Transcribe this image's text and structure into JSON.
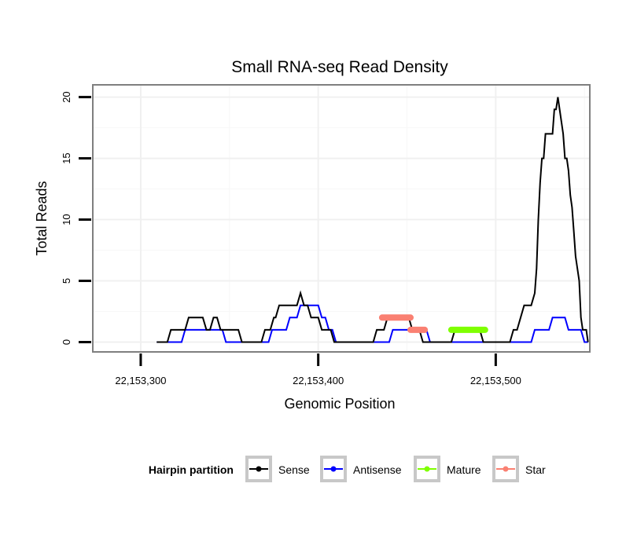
{
  "chart_data": {
    "type": "line",
    "title": "Small RNA-seq Read Density",
    "xlabel": "Genomic Position",
    "ylabel": "Total Reads",
    "xlim": [
      22153273,
      22153553
    ],
    "ylim": [
      -0.8,
      21
    ],
    "x_ticks": [
      {
        "value": 22153300,
        "label": "22,153,300"
      },
      {
        "value": 22153400,
        "label": "22,153,400"
      },
      {
        "value": 22153500,
        "label": "22,153,500"
      }
    ],
    "y_ticks": [
      {
        "value": 0,
        "label": "0"
      },
      {
        "value": 5,
        "label": "5"
      },
      {
        "value": 10,
        "label": "10"
      },
      {
        "value": 15,
        "label": "15"
      },
      {
        "value": 20,
        "label": "20"
      }
    ],
    "grid": true,
    "legend": {
      "title": "Hairpin partition",
      "position": "bottom",
      "entries": [
        "Sense",
        "Antisense",
        "Mature",
        "Star"
      ]
    },
    "series": [
      {
        "name": "Sense",
        "color": "#000000",
        "points": [
          [
            22153309,
            0
          ],
          [
            22153315,
            0
          ],
          [
            22153317,
            1
          ],
          [
            22153325,
            1
          ],
          [
            22153327,
            2
          ],
          [
            22153335,
            2
          ],
          [
            22153337,
            1
          ],
          [
            22153339,
            1
          ],
          [
            22153341,
            2
          ],
          [
            22153343,
            2
          ],
          [
            22153345,
            1
          ],
          [
            22153355,
            1
          ],
          [
            22153357,
            0
          ],
          [
            22153368,
            0
          ],
          [
            22153370,
            1
          ],
          [
            22153373,
            1
          ],
          [
            22153375,
            2
          ],
          [
            22153376,
            2
          ],
          [
            22153378,
            3
          ],
          [
            22153388,
            3
          ],
          [
            22153390,
            4
          ],
          [
            22153392,
            3
          ],
          [
            22153394,
            3
          ],
          [
            22153396,
            2
          ],
          [
            22153400,
            2
          ],
          [
            22153402,
            1
          ],
          [
            22153407,
            1
          ],
          [
            22153409,
            0
          ],
          [
            22153431,
            0
          ],
          [
            22153433,
            1
          ],
          [
            22153437,
            1
          ],
          [
            22153439,
            2
          ],
          [
            22153451,
            2
          ],
          [
            22153453,
            1
          ],
          [
            22153457,
            1
          ],
          [
            22153459,
            0
          ],
          [
            22153475,
            0
          ],
          [
            22153477,
            1
          ],
          [
            22153491,
            1
          ],
          [
            22153493,
            0
          ],
          [
            22153508,
            0
          ],
          [
            22153510,
            1
          ],
          [
            22153512,
            1
          ],
          [
            22153514,
            2
          ],
          [
            22153516,
            3
          ],
          [
            22153520,
            3
          ],
          [
            22153522,
            4
          ],
          [
            22153523,
            6
          ],
          [
            22153524,
            10
          ],
          [
            22153525,
            13
          ],
          [
            22153526,
            15
          ],
          [
            22153527,
            15
          ],
          [
            22153528,
            17
          ],
          [
            22153532,
            17
          ],
          [
            22153533,
            19
          ],
          [
            22153534,
            19
          ],
          [
            22153535,
            20
          ],
          [
            22153536,
            19
          ],
          [
            22153538,
            17
          ],
          [
            22153539,
            15
          ],
          [
            22153540,
            15
          ],
          [
            22153541,
            14
          ],
          [
            22153542,
            12
          ],
          [
            22153543,
            11
          ],
          [
            22153544,
            9
          ],
          [
            22153545,
            7
          ],
          [
            22153546,
            6
          ],
          [
            22153547,
            5
          ],
          [
            22153548,
            2
          ],
          [
            22153549,
            1
          ],
          [
            22153551,
            1
          ],
          [
            22153552,
            0
          ]
        ]
      },
      {
        "name": "Antisense",
        "color": "#0000ff",
        "points": [
          [
            22153309,
            0
          ],
          [
            22153323,
            0
          ],
          [
            22153325,
            1
          ],
          [
            22153346,
            1
          ],
          [
            22153348,
            0
          ],
          [
            22153372,
            0
          ],
          [
            22153374,
            1
          ],
          [
            22153382,
            1
          ],
          [
            22153384,
            2
          ],
          [
            22153388,
            2
          ],
          [
            22153390,
            3
          ],
          [
            22153400,
            3
          ],
          [
            22153402,
            2
          ],
          [
            22153404,
            2
          ],
          [
            22153406,
            1
          ],
          [
            22153408,
            1
          ],
          [
            22153410,
            0
          ],
          [
            22153440,
            0
          ],
          [
            22153442,
            1
          ],
          [
            22153461,
            1
          ],
          [
            22153463,
            0
          ],
          [
            22153520,
            0
          ],
          [
            22153522,
            1
          ],
          [
            22153530,
            1
          ],
          [
            22153532,
            2
          ],
          [
            22153539,
            2
          ],
          [
            22153541,
            1
          ],
          [
            22153548,
            1
          ],
          [
            22153550,
            0
          ],
          [
            22153552,
            0
          ]
        ]
      },
      {
        "name": "Mature",
        "color": "#7fff00",
        "points": [
          [
            22153475,
            1
          ],
          [
            22153494,
            1
          ]
        ]
      },
      {
        "name": "Star",
        "color": "#fa8072",
        "segments": [
          [
            [
              22153436,
              2
            ],
            [
              22153452,
              2
            ]
          ],
          [
            [
              22153452,
              1
            ],
            [
              22153460,
              1
            ]
          ]
        ]
      }
    ]
  }
}
